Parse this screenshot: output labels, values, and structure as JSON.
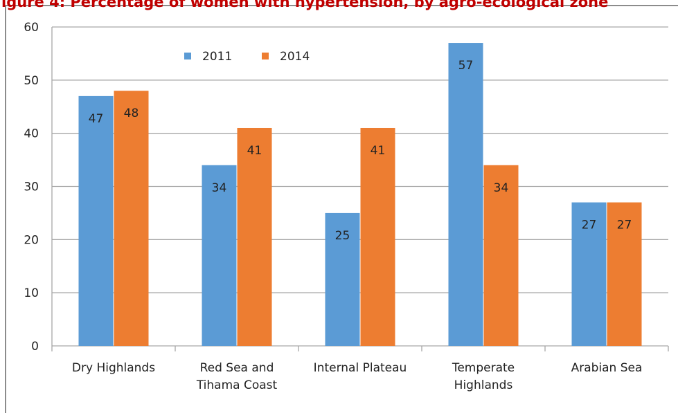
{
  "chart_data": {
    "type": "bar",
    "title": "igure 4: Percentage of women with hypertension, by agro-ecological zone",
    "categories": [
      "Dry Highlands",
      "Red Sea and Tihama Coast",
      "Internal Plateau",
      "Temperate Highlands",
      "Arabian Sea"
    ],
    "series": [
      {
        "name": "2011",
        "color": "#5b9bd5",
        "values": [
          47,
          34,
          25,
          57,
          27
        ]
      },
      {
        "name": "2014",
        "color": "#ed7d31",
        "values": [
          48,
          41,
          41,
          34,
          27
        ]
      }
    ],
    "ylim": [
      0,
      60
    ],
    "yticks": [
      0,
      10,
      20,
      30,
      40,
      50,
      60
    ],
    "grid": true,
    "legend": "top-left",
    "data_labels": true
  }
}
